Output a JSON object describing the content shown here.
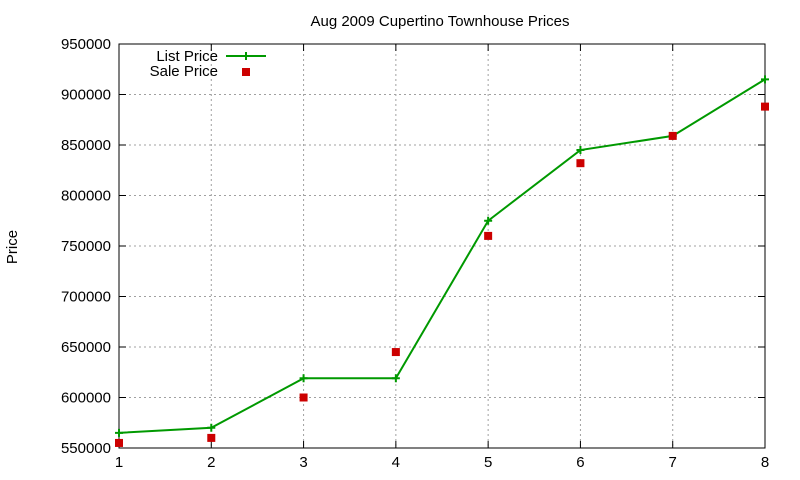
{
  "chart_data": {
    "type": "line",
    "title": "Aug 2009 Cupertino Townhouse Prices",
    "xlabel": "",
    "ylabel": "Price",
    "x": [
      1,
      2,
      3,
      4,
      5,
      6,
      7,
      8
    ],
    "xlim": [
      1,
      8
    ],
    "ylim": [
      550000,
      950000
    ],
    "xticks": [
      "1",
      "2",
      "3",
      "4",
      "5",
      "6",
      "7",
      "8"
    ],
    "yticks": [
      "550000",
      "600000",
      "650000",
      "700000",
      "750000",
      "800000",
      "850000",
      "900000",
      "950000"
    ],
    "grid": true,
    "legend_position": "top-left",
    "series": [
      {
        "name": "List Price",
        "style": "lines+plus-markers",
        "color": "#009900",
        "values": [
          565000,
          570000,
          619000,
          619000,
          775000,
          845000,
          859000,
          915000
        ]
      },
      {
        "name": "Sale Price",
        "style": "square-markers",
        "color": "#cc0000",
        "values": [
          555000,
          560000,
          600000,
          645000,
          760000,
          832000,
          859000,
          888000
        ]
      }
    ]
  }
}
